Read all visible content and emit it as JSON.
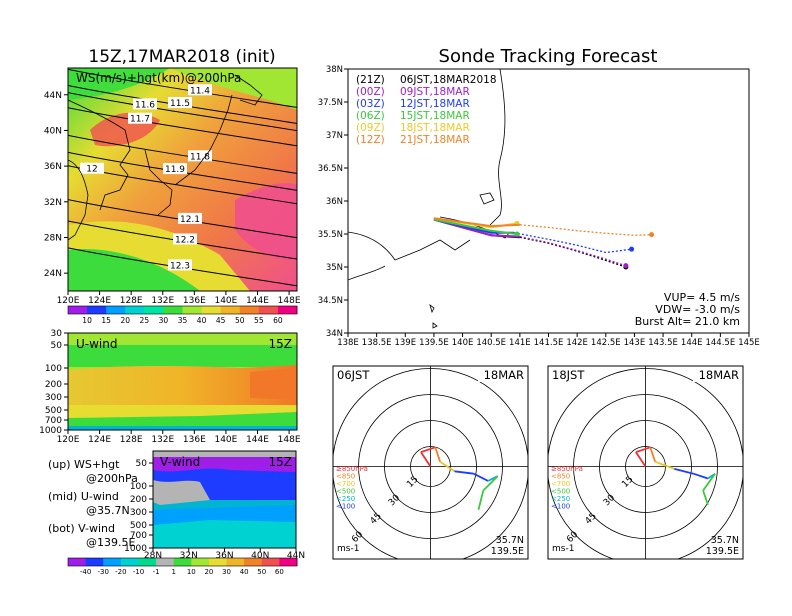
{
  "left_title": "15Z,17MAR2018 (init)",
  "right_title": "Sonde Tracking Forecast",
  "ws_panel": {
    "label": "WS(m/s)+hgt(km)@200hPa",
    "lat_ticks": [
      "44N",
      "40N",
      "36N",
      "32N",
      "28N",
      "24N"
    ],
    "lon_ticks": [
      "120E",
      "124E",
      "128E",
      "132E",
      "136E",
      "140E",
      "144E",
      "148E"
    ],
    "contour_labels": [
      "11.4",
      "11.5",
      "11.6",
      "11.7",
      "11.8",
      "11.9",
      "12",
      "12.1",
      "12.2",
      "12.3"
    ],
    "colorbar_ticks": [
      "10",
      "15",
      "20",
      "25",
      "30",
      "35",
      "40",
      "45",
      "50",
      "55",
      "60"
    ],
    "colorbar_colors": [
      "#a01fe8",
      "#1e3cff",
      "#00a0ff",
      "#00d2d2",
      "#00e6a0",
      "#3cdc3c",
      "#a0e632",
      "#e6dc32",
      "#f0b428",
      "#f08228",
      "#f05050",
      "#f00082"
    ]
  },
  "u_panel": {
    "label": "U-wind",
    "time": "15Z",
    "p_ticks": [
      "30",
      "50",
      "100",
      "200",
      "300",
      "500",
      "700",
      "1000"
    ],
    "lon_ticks": [
      "120E",
      "124E",
      "128E",
      "132E",
      "136E",
      "140E",
      "144E",
      "148E"
    ]
  },
  "v_panel": {
    "label": "V-wind",
    "time": "15Z",
    "p_ticks": [
      "50",
      "100",
      "200",
      "300",
      "500",
      "700",
      "1000"
    ],
    "lat_ticks": [
      "28N",
      "32N",
      "36N",
      "40N",
      "44N"
    ],
    "colorbar_ticks": [
      "-40",
      "-30",
      "-20",
      "-10",
      "-1",
      "1",
      "10",
      "20",
      "30",
      "40",
      "50",
      "60"
    ],
    "colorbar_colors": [
      "#a01fe8",
      "#1e3cff",
      "#00a0ff",
      "#00d2d2",
      "#00dc8c",
      "#b4b4b4",
      "#3cdc3c",
      "#a0e632",
      "#e6dc32",
      "#f0b428",
      "#f08228",
      "#f05050",
      "#f00082"
    ]
  },
  "legend_notes": {
    "up_1": "(up) WS+hgt",
    "up_2": "@200hPa",
    "mid_1": "(mid) U-wind",
    "mid_2": "@35.7N",
    "bot_1": "(bot) V-wind",
    "bot_2": "@139.5E"
  },
  "track_map": {
    "lat_ticks": [
      "38N",
      "37.5N",
      "37N",
      "36.5N",
      "36N",
      "35.5N",
      "35N",
      "34.5N",
      "34N"
    ],
    "lon_ticks": [
      "138E",
      "138.5E",
      "139E",
      "139.5E",
      "140E",
      "140.5E",
      "141E",
      "141.5E",
      "142E",
      "142.5E",
      "143E",
      "143.5E",
      "144E",
      "144.5E",
      "145E"
    ],
    "legend": [
      {
        "code": "(21Z)",
        "text": "06JST,18MAR2018",
        "color": "#000000"
      },
      {
        "code": "(00Z)",
        "text": "09JST,18MAR",
        "color": "#a020c8"
      },
      {
        "code": "(03Z)",
        "text": "12JST,18MAR",
        "color": "#1e3cff"
      },
      {
        "code": "(06Z)",
        "text": "15JST,18MAR",
        "color": "#3cc83c"
      },
      {
        "code": "(09Z)",
        "text": "18JST,18MAR",
        "color": "#f0c828"
      },
      {
        "code": "(12Z)",
        "text": "21JST,18MAR",
        "color": "#f08228"
      }
    ],
    "params": {
      "vup": "VUP=  4.5 m/s",
      "vdw": "VDW= -3.0 m/s",
      "burst": "Burst Alt= 21.0 km"
    }
  },
  "hodographs": [
    {
      "time": "06JST",
      "date": "18MAR",
      "ring_labels": [
        "15",
        "30",
        "45",
        "60"
      ],
      "unit": "ms-1",
      "lat": "35.7N",
      "lon": "139.5E",
      "levels": [
        {
          "label": "≥850hPa",
          "color": "#f03232"
        },
        {
          "label": "<850",
          "color": "#f08228"
        },
        {
          "label": "<700",
          "color": "#e6c828"
        },
        {
          "label": "<500",
          "color": "#3cc83c"
        },
        {
          "label": "<250",
          "color": "#00b4d2"
        },
        {
          "label": "<100",
          "color": "#1e3cff"
        }
      ]
    },
    {
      "time": "18JST",
      "date": "18MAR",
      "ring_labels": [
        "15",
        "30",
        "45",
        "60"
      ],
      "unit": "ms-1",
      "lat": "35.7N",
      "lon": "139.5E",
      "levels": [
        {
          "label": "≥850hPa",
          "color": "#f03232"
        },
        {
          "label": "<850",
          "color": "#f08228"
        },
        {
          "label": "<700",
          "color": "#e6c828"
        },
        {
          "label": "<500",
          "color": "#3cc83c"
        },
        {
          "label": "<250",
          "color": "#00b4d2"
        },
        {
          "label": "<100",
          "color": "#1e3cff"
        }
      ]
    }
  ],
  "chart_data": [
    {
      "type": "heatmap",
      "title": "WS(m/s)+hgt(km)@200hPa",
      "x_range": [
        120,
        149
      ],
      "y_range": [
        22,
        47
      ],
      "contours": [
        {
          "level": "11.4",
          "lat": 44.6
        },
        {
          "level": "11.5",
          "lat": 42.8
        },
        {
          "level": "11.6",
          "lat": 42.0
        },
        {
          "level": "11.7",
          "lat": 40.3
        },
        {
          "level": "11.8",
          "lat": 37.2
        },
        {
          "level": "11.9",
          "lat": 35.3
        },
        {
          "level": "12",
          "lat": 33.8
        },
        {
          "level": "12.1",
          "lat": 30.0
        },
        {
          "level": "12.2",
          "lat": 27.6
        },
        {
          "level": "12.3",
          "lat": 24.6
        }
      ]
    },
    {
      "type": "line",
      "title": "Sonde Tracking Forecast",
      "x_range": [
        138,
        145
      ],
      "y_range": [
        34,
        38
      ],
      "series": [
        {
          "name": "06JST,18MAR2018",
          "color": "#000000",
          "x": [
            139.5,
            140.5,
            141.0,
            141.5,
            142.0,
            142.5,
            142.85
          ],
          "y": [
            35.72,
            35.48,
            35.45,
            35.36,
            35.24,
            35.1,
            35.0
          ]
        },
        {
          "name": "09JST,18MAR",
          "color": "#a020c8",
          "x": [
            139.5,
            140.5,
            141.0,
            141.5,
            142.0,
            142.5,
            142.85
          ],
          "y": [
            35.72,
            35.48,
            35.46,
            35.37,
            35.25,
            35.12,
            35.02
          ]
        },
        {
          "name": "12JST,18MAR",
          "color": "#1e3cff",
          "x": [
            139.5,
            140.5,
            140.9,
            141.5,
            142.0,
            142.5,
            142.95
          ],
          "y": [
            35.72,
            35.52,
            35.52,
            35.42,
            35.33,
            35.22,
            35.27
          ]
        },
        {
          "name": "15JST,18MAR",
          "color": "#3cc83c",
          "x": [
            139.5,
            140.5,
            140.95
          ],
          "y": [
            35.72,
            35.55,
            35.5
          ]
        },
        {
          "name": "18JST,18MAR",
          "color": "#f0c828",
          "x": [
            139.5,
            140.5,
            140.95
          ],
          "y": [
            35.74,
            35.6,
            35.66
          ]
        },
        {
          "name": "21JST,18MAR",
          "color": "#f08228",
          "x": [
            139.5,
            140.5,
            141.0,
            141.5,
            142.0,
            142.5,
            143.0,
            143.3
          ],
          "y": [
            35.74,
            35.62,
            35.64,
            35.6,
            35.55,
            35.51,
            35.48,
            35.49
          ]
        }
      ]
    }
  ]
}
